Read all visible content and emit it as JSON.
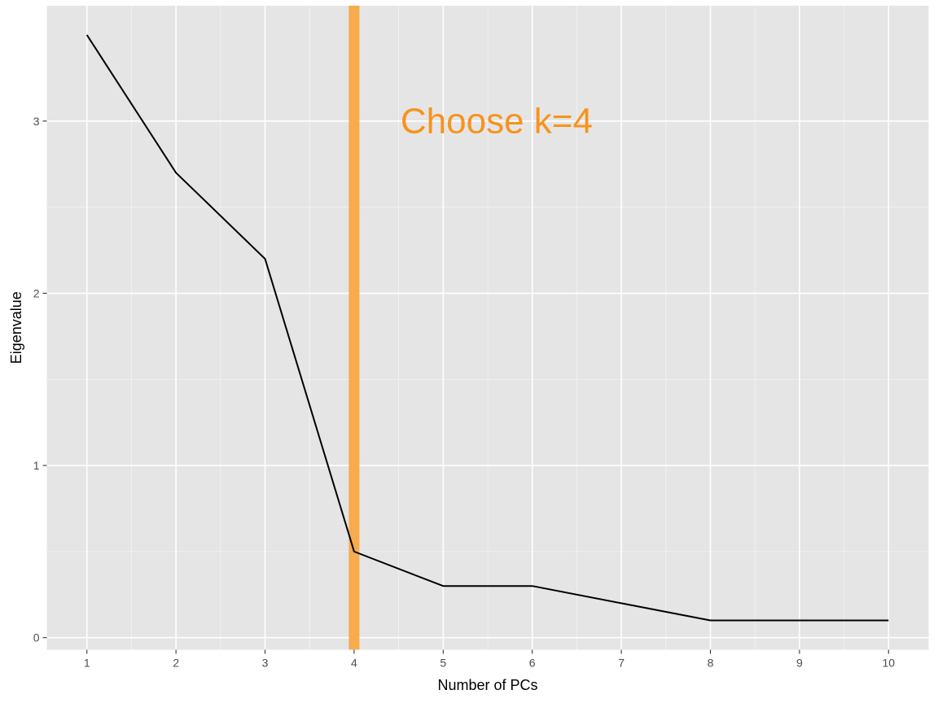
{
  "chart_data": {
    "type": "line",
    "title": "",
    "xlabel": "Number of PCs",
    "ylabel": "Eigenvalue",
    "x": [
      1,
      2,
      3,
      4,
      5,
      6,
      7,
      8,
      9,
      10
    ],
    "y": [
      3.5,
      2.7,
      2.2,
      0.5,
      0.3,
      0.3,
      0.2,
      0.1,
      0.1,
      0.1
    ],
    "xlim": [
      0.55,
      10.45
    ],
    "ylim": [
      -0.07,
      3.67
    ],
    "x_ticks": [
      1,
      2,
      3,
      4,
      5,
      6,
      7,
      8,
      9,
      10
    ],
    "y_ticks": [
      0,
      1,
      2,
      3
    ],
    "grid": true,
    "line_color": "#000000",
    "panel_background": "#e5e5e5",
    "grid_color": "#ffffff",
    "vline": {
      "x": 4,
      "color": "#f7a844"
    },
    "annotation": {
      "text": "Choose k=4",
      "x": 5.6,
      "y": 3.0,
      "color": "#f7931e"
    }
  }
}
